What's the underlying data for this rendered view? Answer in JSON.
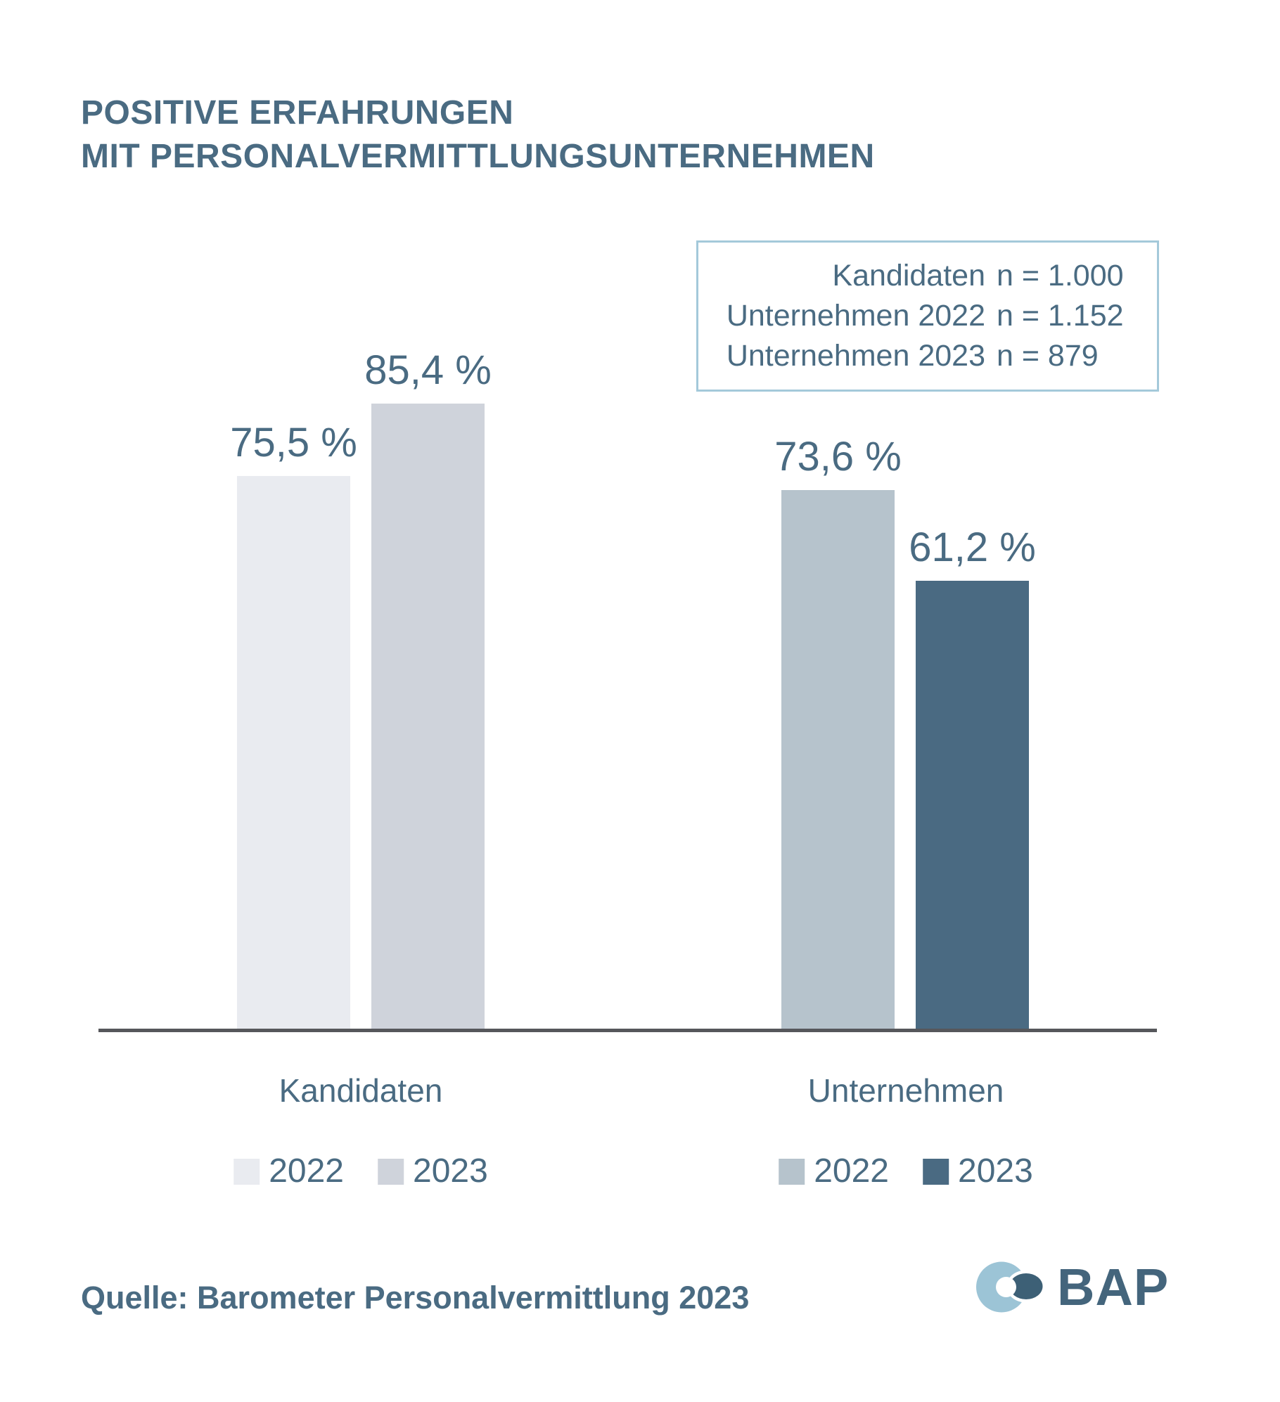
{
  "title": {
    "line1": "POSITIVE ERFAHRUNGEN",
    "line2": "MIT PERSONALVERMITTLUNGSUNTERNEHMEN"
  },
  "info_box": {
    "rows": [
      {
        "label": "Kandidaten",
        "value": "n = 1.000"
      },
      {
        "label": "Unternehmen 2022",
        "value": "n = 1.152"
      },
      {
        "label": "Unternehmen 2023",
        "value": "n = 879"
      }
    ]
  },
  "chart_data": {
    "type": "bar",
    "title": "POSITIVE ERFAHRUNGEN MIT PERSONALVERMITTLUNGSUNTERNEHMEN",
    "unit": "%",
    "ylim": [
      0,
      100
    ],
    "grid": false,
    "legend_position": "bottom",
    "categories": [
      "Kandidaten",
      "Unternehmen"
    ],
    "groups": [
      {
        "category": "Kandidaten",
        "bars": [
          {
            "year": "2022",
            "value": 75.5,
            "label": "75,5 %",
            "color": "#e9ebf0"
          },
          {
            "year": "2023",
            "value": 85.4,
            "label": "85,4 %",
            "color": "#cfd3db"
          }
        ]
      },
      {
        "category": "Unternehmen",
        "bars": [
          {
            "year": "2022",
            "value": 73.6,
            "label": "73,6 %",
            "color": "#b6c3cc"
          },
          {
            "year": "2023",
            "value": 61.2,
            "label": "61,2 %",
            "color": "#4a6a82"
          }
        ]
      }
    ]
  },
  "source": "Quelle: Barometer Personalvermittlung 2023",
  "logo": {
    "text": "BAP",
    "colors": {
      "light_circle": "#9cc4d6",
      "dark_circle": "#3d6076",
      "text": "#44657c"
    }
  },
  "colors": {
    "text": "#4a6b82",
    "axis": "#56575b",
    "info_box_border": "#a4c9da",
    "background": "#ffffff"
  }
}
